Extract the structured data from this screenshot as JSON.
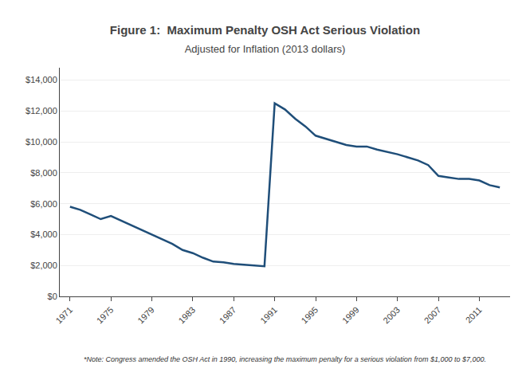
{
  "chart_data": {
    "type": "line",
    "title": "Figure 1:  Maximum Penalty OSH Act Serious Violation",
    "subtitle": "Adjusted for Inflation (2013 dollars)",
    "annotations": [
      "*Note: Congress amended the OSH Act in 1990, increasing the maximum penalty for a serious violation from $1,000 to $7,000."
    ],
    "x": [
      1971,
      1972,
      1973,
      1974,
      1975,
      1976,
      1977,
      1978,
      1979,
      1980,
      1981,
      1982,
      1983,
      1984,
      1985,
      1986,
      1987,
      1988,
      1989,
      1990,
      1991,
      1992,
      1993,
      1994,
      1995,
      1996,
      1997,
      1998,
      1999,
      2000,
      2001,
      2002,
      2003,
      2004,
      2005,
      2006,
      2007,
      2008,
      2009,
      2010,
      2011,
      2012,
      2013
    ],
    "values": [
      5800,
      5600,
      5300,
      5000,
      5200,
      4900,
      4600,
      4300,
      4000,
      3700,
      3400,
      3000,
      2800,
      2500,
      2250,
      2200,
      2100,
      2050,
      2000,
      1950,
      12500,
      12100,
      11500,
      11000,
      10400,
      10200,
      10000,
      9800,
      9700,
      9700,
      9500,
      9350,
      9200,
      9000,
      8800,
      8500,
      7800,
      7700,
      7600,
      7600,
      7500,
      7200,
      7050
    ],
    "color": "#1F4E79",
    "xlim": [
      1970,
      2014
    ],
    "xticks": [
      1971,
      1975,
      1979,
      1983,
      1987,
      1991,
      1995,
      1999,
      2003,
      2007,
      2011
    ],
    "ylim": [
      0,
      14800
    ],
    "yticks": [
      {
        "value": 0,
        "label": "$0"
      },
      {
        "value": 2000,
        "label": "$2,000"
      },
      {
        "value": 4000,
        "label": "$4,000"
      },
      {
        "value": 6000,
        "label": "$6,000"
      },
      {
        "value": 8000,
        "label": "$8,000"
      },
      {
        "value": 10000,
        "label": "$10,000"
      },
      {
        "value": 12000,
        "label": "$12,000"
      },
      {
        "value": 14000,
        "label": "$14,000"
      }
    ],
    "grid": true
  }
}
